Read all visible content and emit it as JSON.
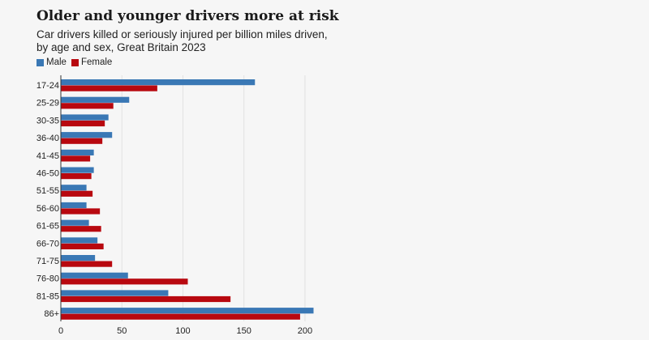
{
  "chart_data": {
    "type": "bar",
    "orientation": "horizontal",
    "title": "Older and younger drivers more at risk",
    "subtitle": "Car drivers killed or seriously injured per billion miles driven, by age and sex, Great Britain 2023",
    "categories": [
      "17-24",
      "25-29",
      "30-35",
      "36-40",
      "41-45",
      "46-50",
      "51-55",
      "56-60",
      "61-65",
      "66-70",
      "71-75",
      "76-80",
      "81-85",
      "86+"
    ],
    "series": [
      {
        "name": "Male",
        "color": "#3a78b5",
        "values": [
          159,
          56,
          39,
          42,
          27,
          27,
          21,
          21,
          23,
          30,
          28,
          55,
          88,
          207
        ]
      },
      {
        "name": "Female",
        "color": "#b8080f",
        "values": [
          79,
          43,
          36,
          34,
          24,
          25,
          26,
          32,
          33,
          35,
          42,
          104,
          139,
          196
        ]
      }
    ],
    "xlim": [
      0,
      210
    ],
    "xticks": [
      0,
      50,
      100,
      150,
      200
    ],
    "grid": true,
    "legend_position": "top-left"
  }
}
